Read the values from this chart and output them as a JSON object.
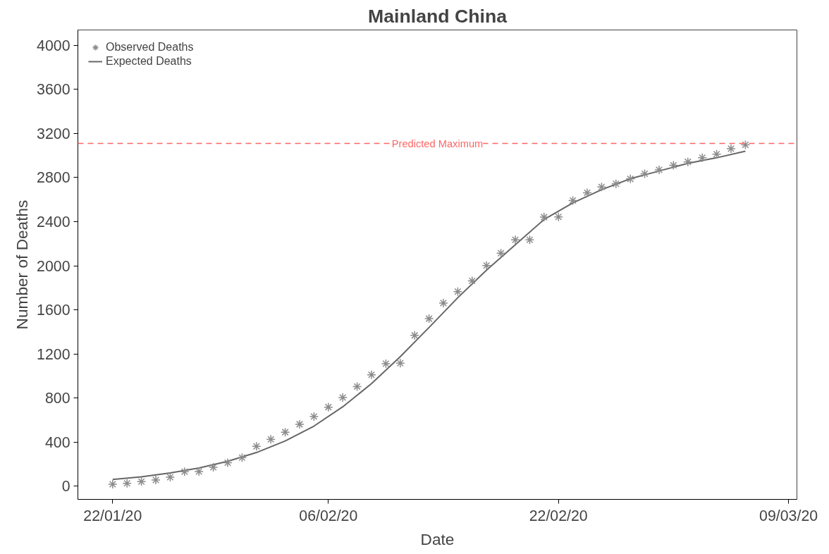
{
  "chart_data": {
    "type": "scatter",
    "title": "Mainland China",
    "xlabel": "Date",
    "ylabel": "Number of Deaths",
    "x": [
      "2020-01-22",
      "2020-01-23",
      "2020-01-24",
      "2020-01-25",
      "2020-01-26",
      "2020-01-27",
      "2020-01-28",
      "2020-01-29",
      "2020-01-30",
      "2020-01-31",
      "2020-02-01",
      "2020-02-02",
      "2020-02-03",
      "2020-02-04",
      "2020-02-05",
      "2020-02-06",
      "2020-02-07",
      "2020-02-08",
      "2020-02-09",
      "2020-02-10",
      "2020-02-11",
      "2020-02-12",
      "2020-02-13",
      "2020-02-14",
      "2020-02-15",
      "2020-02-16",
      "2020-02-17",
      "2020-02-18",
      "2020-02-19",
      "2020-02-20",
      "2020-02-21",
      "2020-02-22",
      "2020-02-23",
      "2020-02-24",
      "2020-02-25",
      "2020-02-26",
      "2020-02-27",
      "2020-02-28",
      "2020-02-29",
      "2020-03-01",
      "2020-03-02",
      "2020-03-03",
      "2020-03-04",
      "2020-03-05",
      "2020-03-06"
    ],
    "series": [
      {
        "name": "Observed Deaths",
        "marker": "cross",
        "color": "#8c8c8c",
        "values": [
          18,
          26,
          42,
          56,
          82,
          131,
          133,
          171,
          213,
          259,
          361,
          425,
          490,
          562,
          632,
          717,
          804,
          904,
          1011,
          1111,
          1116,
          1368,
          1520,
          1662,
          1765,
          1863,
          2002,
          2114,
          2236,
          2236,
          2441,
          2443,
          2592,
          2663,
          2715,
          2744,
          2788,
          2835,
          2870,
          2912,
          2943,
          2981,
          3013,
          3062,
          3097
        ]
      },
      {
        "name": "Expected Deaths",
        "type": "line",
        "line_style": "solid",
        "color": "#666666",
        "x": [
          "2020-01-22",
          "2020-01-24",
          "2020-01-26",
          "2020-01-28",
          "2020-01-30",
          "2020-02-01",
          "2020-02-03",
          "2020-02-05",
          "2020-02-07",
          "2020-02-09",
          "2020-02-11",
          "2020-02-13",
          "2020-02-15",
          "2020-02-17",
          "2020-02-19",
          "2020-02-21",
          "2020-02-23",
          "2020-02-25",
          "2020-02-27",
          "2020-02-29",
          "2020-03-02",
          "2020-03-04",
          "2020-03-06"
        ],
        "values": [
          60,
          85,
          120,
          165,
          225,
          305,
          410,
          545,
          720,
          930,
          1175,
          1440,
          1710,
          1960,
          2190,
          2420,
          2570,
          2690,
          2790,
          2860,
          2930,
          2980,
          3040
        ]
      }
    ],
    "xlim": [
      "2020-01-19T14:00",
      "2020-03-09T14:00"
    ],
    "xticks": [
      {
        "value": "2020-01-22",
        "label": "22/01/20"
      },
      {
        "value": "2020-02-06",
        "label": "06/02/20"
      },
      {
        "value": "2020-02-22",
        "label": "22/02/20"
      },
      {
        "value": "2020-03-09",
        "label": "09/03/20"
      }
    ],
    "ylim": [
      -120,
      4140
    ],
    "yticks": [
      0,
      400,
      800,
      1200,
      1600,
      2000,
      2400,
      2800,
      3200,
      3600,
      4000
    ],
    "ref_lines": [
      {
        "axis": "y",
        "value": 3110,
        "label": "Predicted Maximum",
        "color": "#ff6666",
        "line_style": "dashed"
      }
    ],
    "grid": false,
    "legend": "top left"
  }
}
